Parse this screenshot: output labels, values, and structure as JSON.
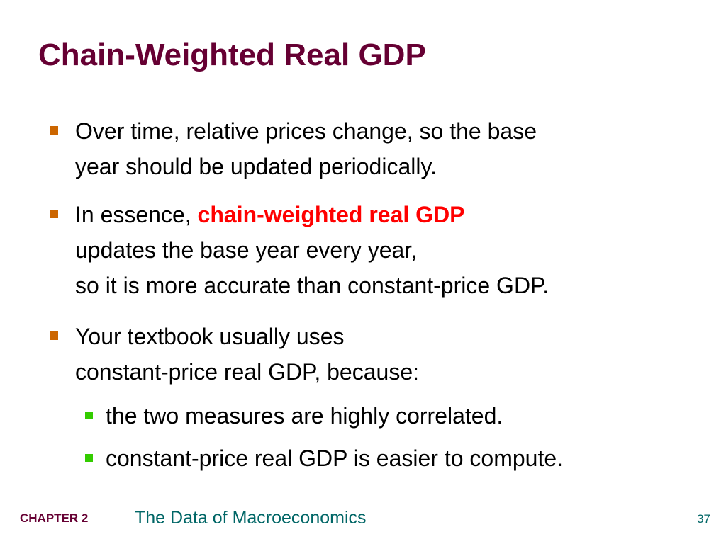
{
  "slide": {
    "title": "Chain-Weighted Real GDP",
    "bullets": [
      {
        "lines": [
          "Over time, relative prices change, so the base",
          "year should be updated periodically."
        ]
      },
      {
        "lead": "In essence, ",
        "highlight": "chain-weighted real GDP",
        "lines": [
          "updates the base year every year,",
          "so it is more accurate than constant-price GDP."
        ]
      },
      {
        "lines": [
          "Your textbook usually uses",
          "constant-price real GDP, because:"
        ],
        "sub_bullets": [
          "the two measures are highly correlated.",
          "constant-price real GDP is easier to compute."
        ]
      }
    ]
  },
  "footer": {
    "chapter": "CHAPTER 2",
    "subject": "The Data of Macroeconomics",
    "page_number": "37"
  },
  "colors": {
    "title": "#660033",
    "bullet_marker": "#cc6600",
    "sub_bullet_marker": "#33cc00",
    "highlight": "#ff0000",
    "footer_subject": "#006666"
  }
}
